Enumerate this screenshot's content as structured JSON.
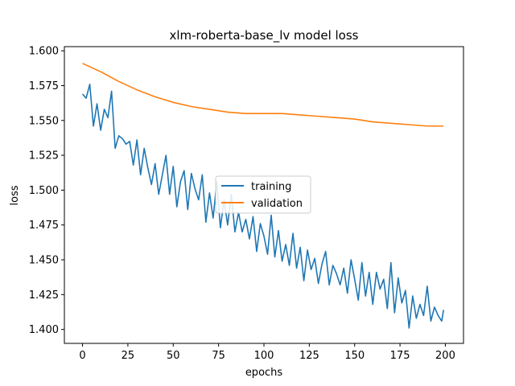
{
  "chart_data": {
    "type": "line",
    "title": "xlm-roberta-base_lv model loss",
    "xlabel": "epochs",
    "ylabel": "loss",
    "xlim": [
      -10,
      210
    ],
    "ylim": [
      1.39,
      1.603
    ],
    "x_ticks": [
      0,
      25,
      50,
      75,
      100,
      125,
      150,
      175,
      200
    ],
    "y_ticks": [
      1.4,
      1.425,
      1.45,
      1.475,
      1.5,
      1.525,
      1.55,
      1.575,
      1.6
    ],
    "x_tick_labels": [
      "0",
      "25",
      "50",
      "75",
      "100",
      "125",
      "150",
      "175",
      "200"
    ],
    "y_tick_labels": [
      "1.400",
      "1.425",
      "1.450",
      "1.475",
      "1.500",
      "1.525",
      "1.550",
      "1.575",
      "1.600"
    ],
    "grid": false,
    "legend_position": "center",
    "series": [
      {
        "name": "training",
        "color": "#1f77b4",
        "x": [
          0,
          2,
          4,
          6,
          8,
          10,
          12,
          14,
          16,
          18,
          20,
          22,
          24,
          26,
          28,
          30,
          32,
          34,
          36,
          38,
          40,
          42,
          44,
          46,
          48,
          50,
          52,
          54,
          56,
          58,
          60,
          62,
          64,
          66,
          68,
          70,
          72,
          74,
          76,
          78,
          80,
          82,
          84,
          86,
          88,
          90,
          92,
          94,
          96,
          98,
          100,
          102,
          104,
          106,
          108,
          110,
          112,
          114,
          116,
          118,
          120,
          122,
          124,
          126,
          128,
          130,
          132,
          134,
          136,
          138,
          140,
          142,
          144,
          146,
          148,
          150,
          152,
          154,
          156,
          158,
          160,
          162,
          164,
          166,
          168,
          170,
          172,
          174,
          176,
          178,
          180,
          182,
          184,
          186,
          188,
          190,
          192,
          194,
          196,
          198,
          199
        ],
        "y": [
          1.569,
          1.566,
          1.576,
          1.546,
          1.562,
          1.543,
          1.558,
          1.552,
          1.571,
          1.53,
          1.539,
          1.537,
          1.533,
          1.535,
          1.518,
          1.536,
          1.511,
          1.53,
          1.516,
          1.504,
          1.519,
          1.497,
          1.511,
          1.525,
          1.497,
          1.517,
          1.488,
          1.506,
          1.514,
          1.486,
          1.512,
          1.501,
          1.493,
          1.511,
          1.477,
          1.498,
          1.48,
          1.506,
          1.473,
          1.493,
          1.475,
          1.497,
          1.47,
          1.484,
          1.47,
          1.479,
          1.465,
          1.481,
          1.456,
          1.476,
          1.467,
          1.454,
          1.482,
          1.452,
          1.471,
          1.449,
          1.461,
          1.446,
          1.469,
          1.444,
          1.459,
          1.435,
          1.457,
          1.443,
          1.451,
          1.433,
          1.447,
          1.456,
          1.432,
          1.446,
          1.44,
          1.432,
          1.444,
          1.426,
          1.45,
          1.436,
          1.421,
          1.448,
          1.424,
          1.441,
          1.418,
          1.441,
          1.429,
          1.436,
          1.415,
          1.448,
          1.412,
          1.437,
          1.419,
          1.428,
          1.401,
          1.424,
          1.408,
          1.418,
          1.41,
          1.431,
          1.406,
          1.416,
          1.41,
          1.406,
          1.414
        ]
      },
      {
        "name": "validation",
        "color": "#ff7f0e",
        "x": [
          0,
          10,
          20,
          30,
          40,
          50,
          60,
          70,
          80,
          90,
          100,
          110,
          120,
          130,
          140,
          150,
          160,
          170,
          180,
          190,
          199
        ],
        "y": [
          1.591,
          1.585,
          1.578,
          1.572,
          1.567,
          1.563,
          1.56,
          1.558,
          1.556,
          1.555,
          1.555,
          1.555,
          1.554,
          1.553,
          1.552,
          1.551,
          1.549,
          1.548,
          1.547,
          1.546,
          1.546
        ]
      }
    ]
  }
}
